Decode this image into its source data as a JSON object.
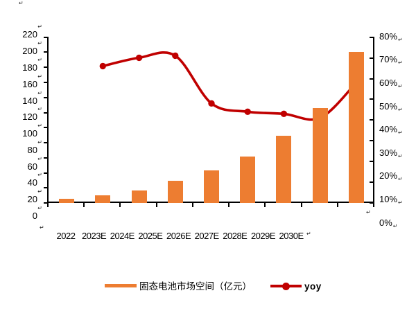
{
  "chart_data": {
    "type": "combo_bar_line",
    "title": "",
    "categories": [
      "2022",
      "2023E",
      "2024E",
      "2025E",
      "2026E",
      "2027E",
      "2028E",
      "2029E",
      "2030E"
    ],
    "series": [
      {
        "name": "固态电池市场空间（亿元）",
        "type": "bar",
        "axis": "left",
        "color": "#ED7D31",
        "values": [
          6,
          10,
          17,
          29,
          43,
          62,
          89,
          126,
          200
        ]
      },
      {
        "name": "yoy",
        "type": "line",
        "axis": "right",
        "color": "#C00000",
        "values_pct": [
          null,
          66,
          70,
          71,
          48,
          44,
          43,
          41,
          58
        ]
      }
    ],
    "left_axis": {
      "min": 0,
      "max": 220,
      "step": 20,
      "tick_labels": [
        "220",
        "200",
        "180",
        "160",
        "140",
        "120",
        "100",
        "80",
        "60",
        "40",
        "20",
        "0"
      ]
    },
    "right_axis": {
      "min_pct": 0,
      "max_pct": 80,
      "step_pct": 10,
      "tick_labels": [
        "80%",
        "70%",
        "60%",
        "50%",
        "40%",
        "30%",
        "20%",
        "10%",
        "0%"
      ]
    },
    "grid": false,
    "legend_position": "bottom",
    "legend_entries": [
      "固态电池市场空间（亿元）",
      "yoy"
    ]
  },
  "legend": {
    "bar_label": "固态电池市场空间（亿元）",
    "line_label": "yoy"
  },
  "colors": {
    "bar": "#ED7D31",
    "line": "#C00000",
    "axis": "#000000",
    "background": "#FFFFFF"
  },
  "artifact_mark": "↵"
}
